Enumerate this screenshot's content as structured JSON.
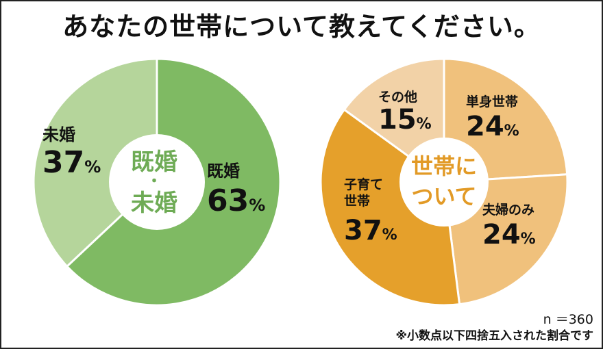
{
  "title": "あなたの世帯について教えてください。",
  "chart_data": [
    {
      "type": "pie",
      "center_label": [
        "既婚",
        "・",
        "未婚"
      ],
      "slices": [
        {
          "label": "既婚",
          "value": 63,
          "color": "#7fba63"
        },
        {
          "label": "未婚",
          "value": 37,
          "color": "#b5d59b"
        }
      ]
    },
    {
      "type": "pie",
      "center_label": [
        "世帯に",
        "ついて"
      ],
      "slices": [
        {
          "label": "単身世帯",
          "value": 24,
          "color": "#f0c17c"
        },
        {
          "label": "夫婦のみ",
          "value": 24,
          "color": "#f0c17c"
        },
        {
          "label": "子育て世帯",
          "value": 37,
          "color": "#e5a02b"
        },
        {
          "label": "その他",
          "value": 15,
          "color": "#f2d2a7"
        }
      ]
    }
  ],
  "footnotes": {
    "sample": "n ＝360",
    "rounding": "※小数点以下四捨五入された割合です"
  },
  "unit": "%"
}
